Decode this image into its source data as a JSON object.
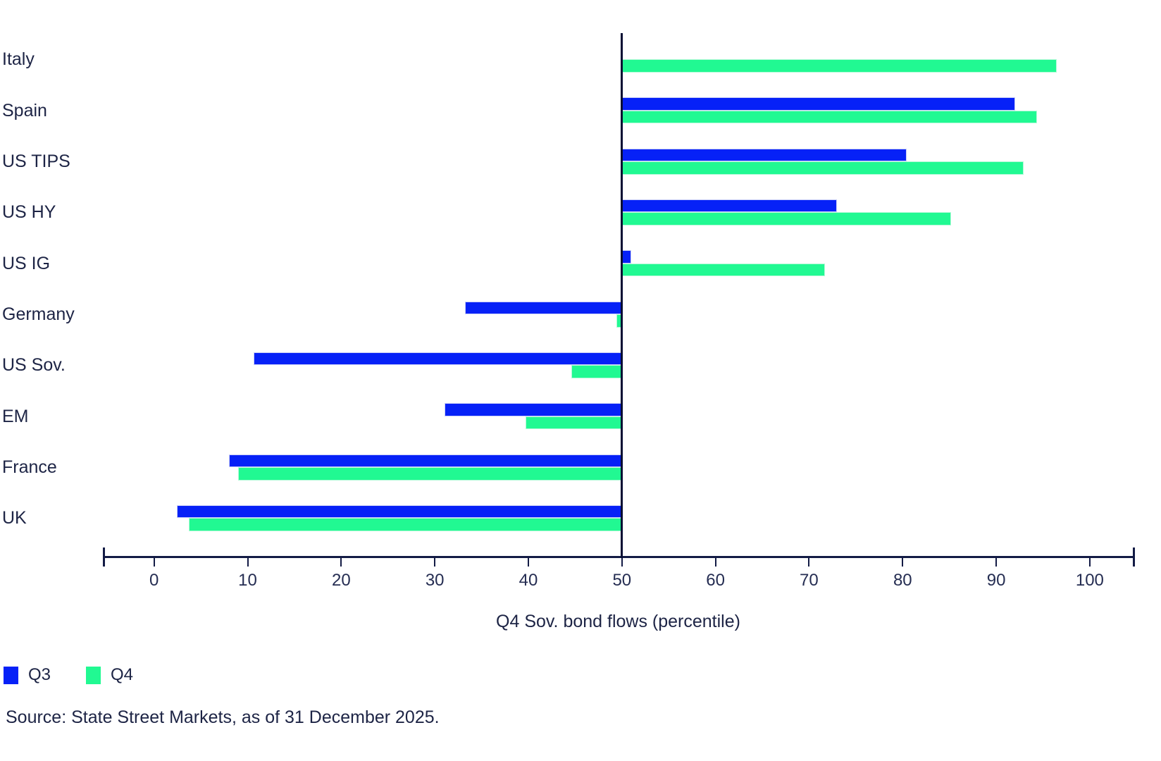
{
  "chart_data": {
    "type": "bar",
    "orientation": "horizontal",
    "xlabel": "Q4 Sov. bond flows (percentile)",
    "categories": [
      "Italy",
      "Spain",
      "US TIPS",
      "US HY",
      "US IG",
      "Germany",
      "US Sov.",
      "EM",
      "France",
      "UK"
    ],
    "series": [
      {
        "name": "Q3",
        "color": "#0621f7",
        "stroke": "#c9cef7",
        "values": [
          50,
          92,
          80.4,
          73,
          51,
          33.2,
          10.6,
          31,
          8,
          2.4
        ]
      },
      {
        "name": "Q4",
        "color": "#21f992",
        "stroke": "#b4f9d8",
        "values": [
          96.5,
          94.4,
          92.9,
          85.2,
          71.7,
          49.4,
          44.6,
          39.7,
          9,
          3.7
        ]
      }
    ],
    "baseline": 50,
    "x_ticks": [
      0,
      10,
      20,
      30,
      40,
      50,
      60,
      70,
      80,
      90,
      100
    ],
    "xlim": [
      -5.4,
      104.6
    ],
    "grid": false,
    "legend_position": "bottom-left"
  },
  "legend": {
    "q3_label": "Q3",
    "q4_label": "Q4"
  },
  "source_text": "Source: State Street Markets, as of 31 December 2025.",
  "colors": {
    "q3": "#0621f7",
    "q4": "#21f992",
    "axis": "#131b45",
    "median_line": "#060d33",
    "text": "#1d2445"
  }
}
